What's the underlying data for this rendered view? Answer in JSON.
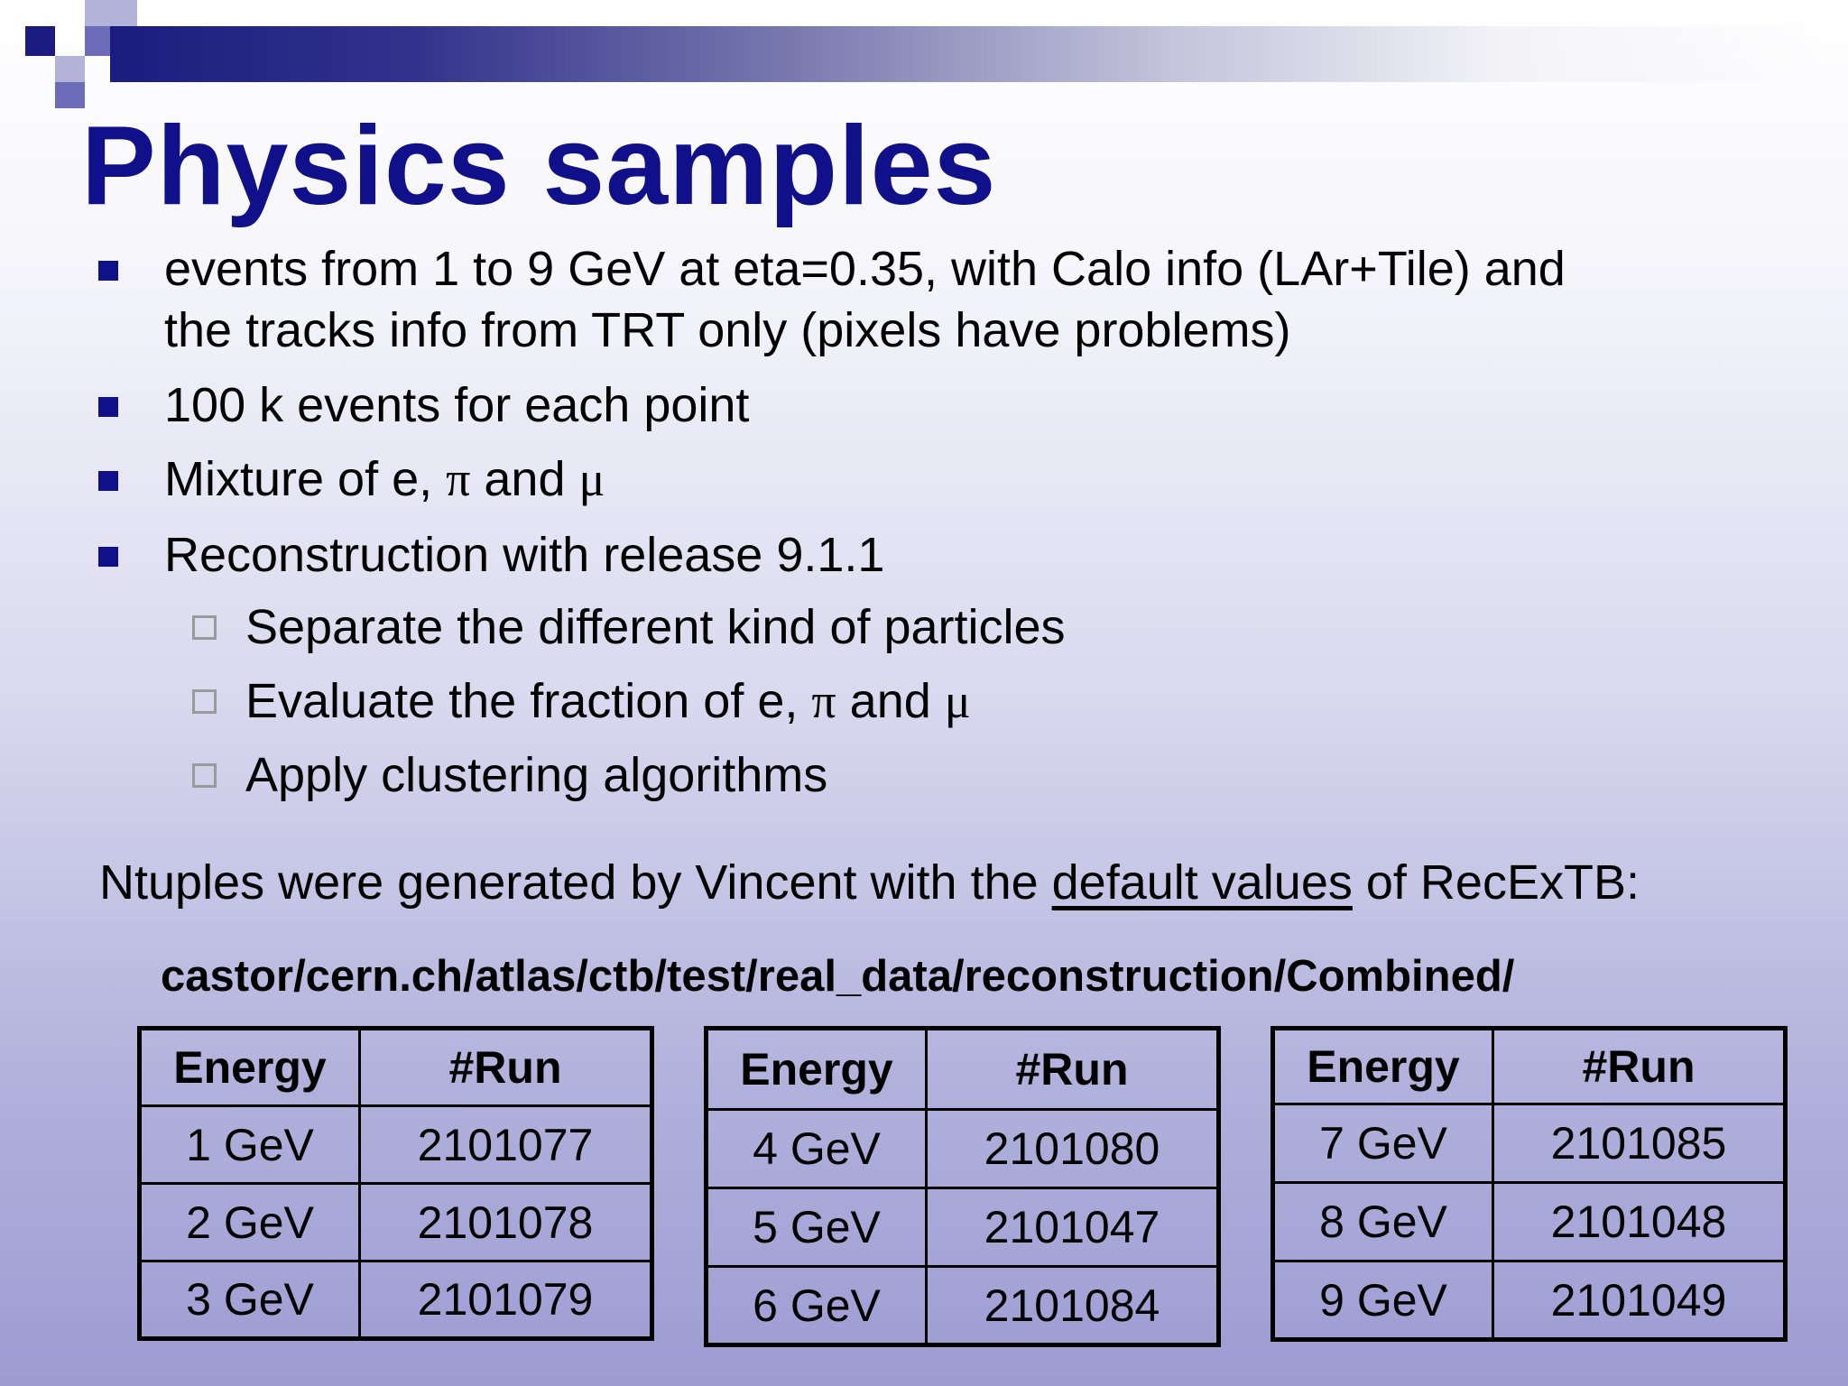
{
  "title": "Physics samples",
  "bullets": [
    {
      "line1": "events from 1 to 9 GeV at eta=0.35, with Calo info  (LAr+Tile) and",
      "line2": "the tracks info from TRT only (pixels have problems)"
    },
    {
      "text": "100 k events for each point"
    },
    {
      "pre": "Mixture of e, ",
      "pi": "π",
      "mid": " and ",
      "mu": "μ"
    },
    {
      "text": "Reconstruction with release 9.1.1"
    }
  ],
  "subbullets": [
    {
      "text": "Separate the different kind of particles"
    },
    {
      "pre": "Evaluate the fraction of e, ",
      "pi": "π",
      "mid": " and ",
      "mu": "μ"
    },
    {
      "text": "Apply clustering algorithms"
    }
  ],
  "ntuples": {
    "pre": "Ntuples were generated by Vincent with the ",
    "underline": "default values",
    "post": " of RecExTB:"
  },
  "path": "castor/cern.ch/atlas/ctb/test/real_data/reconstruction/Combined/",
  "tables": [
    {
      "header": [
        "Energy",
        "#Run"
      ],
      "rows": [
        [
          "1 GeV",
          "2101077"
        ],
        [
          "2 GeV",
          "2101078"
        ],
        [
          "3 GeV",
          "2101079"
        ]
      ]
    },
    {
      "header": [
        "Energy",
        "#Run"
      ],
      "rows": [
        [
          "4 GeV",
          "2101080"
        ],
        [
          "5 GeV",
          "2101047"
        ],
        [
          "6 GeV",
          "2101084"
        ]
      ]
    },
    {
      "header": [
        "Energy",
        "#Run"
      ],
      "rows": [
        [
          "7 GeV",
          "2101085"
        ],
        [
          "8 GeV",
          "2101048"
        ],
        [
          "9 GeV",
          "2101049"
        ]
      ]
    }
  ],
  "colors": {
    "title": "#10108a",
    "bullet": "#10108a",
    "accent_dark": "#1c1c80"
  }
}
